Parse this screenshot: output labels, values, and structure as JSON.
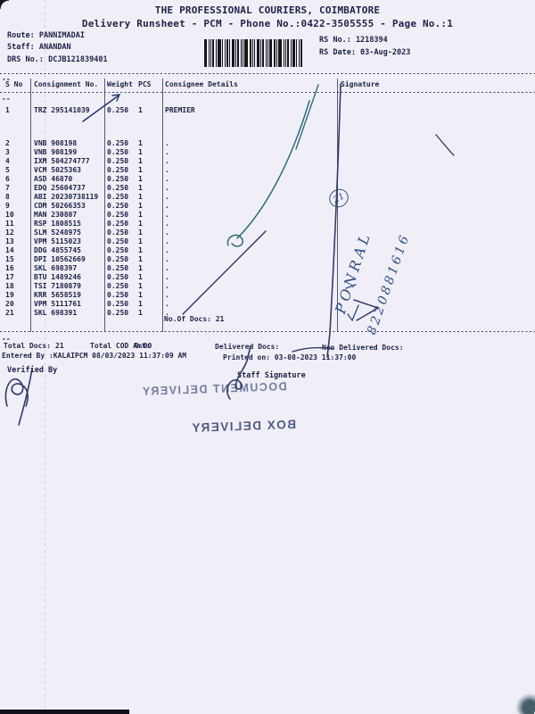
{
  "doc": {
    "title": "THE PROFESSIONAL COURIERS, COIMBATORE",
    "subtitle": "Delivery Runsheet - PCM - Phone No.:0422-3505555 - Page No.:1",
    "route_label": "Route:",
    "route": "PANNIMADAI",
    "staff_label": "Staff:",
    "staff": "ANANDAN",
    "drs_label": "DRS No.:",
    "drs": "DCJB121839401",
    "rs_no": "RS No.: 1218394",
    "rs_date": "RS Date: 03-Aug-2023",
    "continuation_mark": "--"
  },
  "table": {
    "headers": {
      "sno": "S No",
      "consignment": "Consignment No.",
      "weight": "Weight",
      "pcs": "PCS",
      "consignee": "Consignee Details",
      "signature": "Signature"
    },
    "rows": [
      {
        "sno": "1",
        "consignment": "TRZ 295141039",
        "weight": "0.250",
        "pcs": "1",
        "consignee": "PREMIER"
      },
      {
        "sno": "2",
        "consignment": "VNB 908198",
        "weight": "0.250",
        "pcs": "1",
        "consignee": "."
      },
      {
        "sno": "3",
        "consignment": "VNB 908199",
        "weight": "0.250",
        "pcs": "1",
        "consignee": "."
      },
      {
        "sno": "4",
        "consignment": "IXM 504274777",
        "weight": "0.250",
        "pcs": "1",
        "consignee": "."
      },
      {
        "sno": "5",
        "consignment": "VCM 5025363",
        "weight": "0.250",
        "pcs": "1",
        "consignee": "."
      },
      {
        "sno": "6",
        "consignment": "ASD 46870",
        "weight": "0.250",
        "pcs": "1",
        "consignee": "."
      },
      {
        "sno": "7",
        "consignment": "EDQ 25604737",
        "weight": "0.250",
        "pcs": "1",
        "consignee": "."
      },
      {
        "sno": "8",
        "consignment": "ABI 20230738119",
        "weight": "0.250",
        "pcs": "1",
        "consignee": "."
      },
      {
        "sno": "9",
        "consignment": "CDM 50266353",
        "weight": "0.250",
        "pcs": "1",
        "consignee": "."
      },
      {
        "sno": "10",
        "consignment": "MAN 230807",
        "weight": "0.250",
        "pcs": "1",
        "consignee": "."
      },
      {
        "sno": "11",
        "consignment": "RSP 1808515",
        "weight": "0.250",
        "pcs": "1",
        "consignee": "."
      },
      {
        "sno": "12",
        "consignment": "SLM 5248975",
        "weight": "0.250",
        "pcs": "1",
        "consignee": "."
      },
      {
        "sno": "13",
        "consignment": "VPM 5115023",
        "weight": "0.250",
        "pcs": "1",
        "consignee": "."
      },
      {
        "sno": "14",
        "consignment": "DDG 4855745",
        "weight": "0.250",
        "pcs": "1",
        "consignee": "."
      },
      {
        "sno": "15",
        "consignment": "DPI 10562669",
        "weight": "0.250",
        "pcs": "1",
        "consignee": "."
      },
      {
        "sno": "16",
        "consignment": "SKL 698397",
        "weight": "0.250",
        "pcs": "1",
        "consignee": "."
      },
      {
        "sno": "17",
        "consignment": "BTU 1489246",
        "weight": "0.250",
        "pcs": "1",
        "consignee": "."
      },
      {
        "sno": "18",
        "consignment": "TSI 7180879",
        "weight": "0.250",
        "pcs": "1",
        "consignee": "."
      },
      {
        "sno": "19",
        "consignment": "KRR 5658519",
        "weight": "0.250",
        "pcs": "1",
        "consignee": "."
      },
      {
        "sno": "20",
        "consignment": "VPM 5111761",
        "weight": "0.250",
        "pcs": "1",
        "consignee": "."
      },
      {
        "sno": "21",
        "consignment": "SKL 698391",
        "weight": "0.250",
        "pcs": "1",
        "consignee": "."
      }
    ],
    "docs_count": "No.Of Docs: 21"
  },
  "footer": {
    "total_docs_label": "Total Docs:",
    "total_docs_value": "21",
    "total_cod_label": "Total COD Amt:",
    "total_cod_value": "0.00",
    "delivered_label": "Delivered Docs:",
    "non_delivered_label": "Non Delivered Docs:",
    "entered_by": "Entered By :KALAIPCM 08/03/2023 11:37:09 AM",
    "printed_on": "Printed on: 03-08-2023 11:37:00",
    "verified_by": "Verified By",
    "staff_signature": "Staff Signature"
  },
  "stamps": {
    "document_delivery": "DOCUMENT DELIVERY",
    "box_delivery": "BOX DELIVERY"
  },
  "annotations": {
    "circled_number": "21",
    "handwritten_name": "PONRAL",
    "handwritten_number": "8220881616"
  },
  "colors": {
    "paper": "#f0eff8",
    "print": "#1d2248",
    "pen_navy": "#2c3a6b",
    "pen_teal": "#2e6b7a",
    "handwriting_ink": "#2c4f85",
    "stamp_faded": "#737c9d",
    "stamp_dark": "#4d5982"
  }
}
